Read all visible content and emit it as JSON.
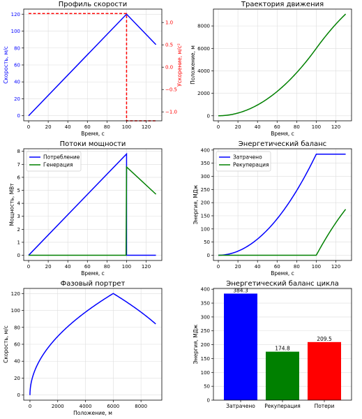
{
  "chart_data": [
    {
      "id": "speed",
      "type": "line",
      "title": "Профиль скорости",
      "xlabel": "Время, с",
      "ylabel": "Скорость, м/с",
      "ylabel_right": "Ускорение, м/с²",
      "xlim": [
        -5,
        136
      ],
      "ylim": [
        -6,
        126
      ],
      "ylim_right": [
        -1.2,
        1.3
      ],
      "xticks": [
        0,
        20,
        40,
        60,
        80,
        100,
        120
      ],
      "yticks": [
        0,
        20,
        40,
        60,
        80,
        100,
        120
      ],
      "yticks_right": [
        -1.0,
        -0.5,
        0.0,
        0.5,
        1.0
      ],
      "ytick_labels_right": [
        "−1.0",
        "−0.5",
        "0.0",
        "0.5",
        "1.0"
      ],
      "grid": true,
      "series": [
        {
          "axis": "left",
          "color": "#0000ff",
          "dash": false,
          "x": [
            0,
            100,
            130
          ],
          "y": [
            0,
            120,
            84
          ]
        },
        {
          "axis": "right",
          "color": "#ff0000",
          "dash": true,
          "x": [
            0,
            100,
            100,
            130
          ],
          "y": [
            1.2,
            1.2,
            -1.2,
            -1.2
          ]
        }
      ],
      "axis_colors": {
        "left": "#0000ff",
        "right": "#ff0000"
      }
    },
    {
      "id": "traj",
      "type": "line",
      "title": "Траектория движения",
      "xlabel": "Время, с",
      "ylabel": "Положение, м",
      "xlim": [
        -5,
        136
      ],
      "ylim": [
        -450,
        9500
      ],
      "xticks": [
        0,
        20,
        40,
        60,
        80,
        100,
        120
      ],
      "yticks": [
        0,
        2000,
        4000,
        6000,
        8000
      ],
      "grid": true,
      "series": [
        {
          "color": "#008000",
          "func": "position"
        }
      ]
    },
    {
      "id": "power",
      "type": "line",
      "title": "Потоки мощности",
      "xlabel": "Время, с",
      "ylabel": "Мощность, МВт",
      "xlim": [
        -5,
        136
      ],
      "ylim": [
        -0.4,
        8.2
      ],
      "xticks": [
        0,
        20,
        40,
        60,
        80,
        100,
        120
      ],
      "yticks": [
        0,
        1,
        2,
        3,
        4,
        5,
        6,
        7,
        8
      ],
      "grid": true,
      "legend": "upper-left",
      "series": [
        {
          "name": "Потребление",
          "color": "#0000ff",
          "x": [
            0,
            100,
            100,
            130
          ],
          "y": [
            0,
            7.8,
            0,
            0
          ]
        },
        {
          "name": "Генерация",
          "color": "#008000",
          "x": [
            0,
            99.5,
            100,
            130
          ],
          "y": [
            0,
            0,
            6.8,
            4.7
          ]
        }
      ]
    },
    {
      "id": "energy",
      "type": "line",
      "title": "Энергетический баланс",
      "xlabel": "Время, с",
      "ylabel": "Энергия, МДж",
      "xlim": [
        -5,
        136
      ],
      "ylim": [
        -20,
        405
      ],
      "xticks": [
        0,
        20,
        40,
        60,
        80,
        100,
        120
      ],
      "yticks": [
        0,
        50,
        100,
        150,
        200,
        250,
        300,
        350,
        400
      ],
      "grid": true,
      "legend": "upper-left",
      "series": [
        {
          "name": "Затрачено",
          "color": "#0000ff",
          "func": "spent"
        },
        {
          "name": "Рекуперация",
          "color": "#008000",
          "func": "recup"
        }
      ]
    },
    {
      "id": "phase",
      "type": "line",
      "title": "Фазовый портрет",
      "xlabel": "Положение, м",
      "ylabel": "Скорость, м/с",
      "xlim": [
        -450,
        9500
      ],
      "ylim": [
        -6,
        126
      ],
      "xticks": [
        0,
        2000,
        4000,
        6000,
        8000
      ],
      "yticks": [
        0,
        20,
        40,
        60,
        80,
        100,
        120
      ],
      "grid": true,
      "series": [
        {
          "color": "#0000ff",
          "func": "phase"
        }
      ]
    },
    {
      "id": "bars",
      "type": "bar",
      "title": "Энергетический баланс цикла",
      "ylabel": "Энергия, МДж",
      "categories": [
        "Затрачено",
        "Рекуперация",
        "Потери"
      ],
      "values": [
        384.3,
        174.8,
        209.5
      ],
      "value_labels": [
        "384.3",
        "174.8",
        "209.5"
      ],
      "colors": [
        "#0000ff",
        "#008000",
        "#ff0000"
      ],
      "ylim": [
        0,
        403
      ],
      "yticks": [
        0,
        50,
        100,
        150,
        200,
        250,
        300,
        350,
        400
      ],
      "grid": true
    }
  ]
}
